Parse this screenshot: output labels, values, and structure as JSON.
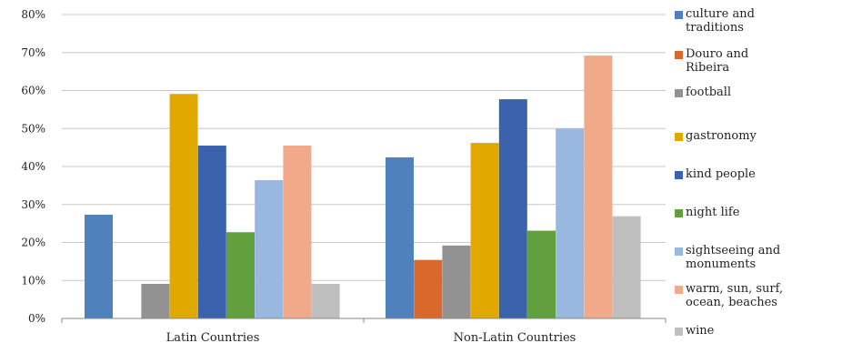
{
  "chart_data": {
    "type": "bar",
    "title": "",
    "xlabel": "",
    "ylabel": "",
    "ylim": [
      0,
      0.8
    ],
    "yticks": [
      "0%",
      "10%",
      "20%",
      "30%",
      "40%",
      "50%",
      "60%",
      "70%",
      "80%"
    ],
    "grid": true,
    "legend": "right",
    "categories": [
      "Latin Countries",
      "Non-Latin Countries"
    ],
    "series": [
      {
        "name": "culture and\ntraditions",
        "color": "#4f81bd",
        "values": [
          0.273,
          0.424
        ]
      },
      {
        "name": "Douro and\nRibeira",
        "color": "#d9692b",
        "values": [
          0.0,
          0.154
        ]
      },
      {
        "name": "football",
        "color": "#929292",
        "values": [
          0.091,
          0.192
        ]
      },
      {
        "name": "gastronomy",
        "color": "#e1a800",
        "values": [
          0.591,
          0.462
        ]
      },
      {
        "name": "kind people",
        "color": "#3a62ad",
        "values": [
          0.455,
          0.577
        ]
      },
      {
        "name": "night life",
        "color": "#62a03e",
        "values": [
          0.227,
          0.231
        ]
      },
      {
        "name": "sightseeing and\nmonuments",
        "color": "#99b8e0",
        "values": [
          0.364,
          0.5
        ]
      },
      {
        "name": "warm, sun, surf,\nocean, beaches",
        "color": "#f1a98a",
        "values": [
          0.455,
          0.692
        ]
      },
      {
        "name": "wine",
        "color": "#bfbfbf",
        "values": [
          0.091,
          0.269
        ]
      }
    ]
  }
}
